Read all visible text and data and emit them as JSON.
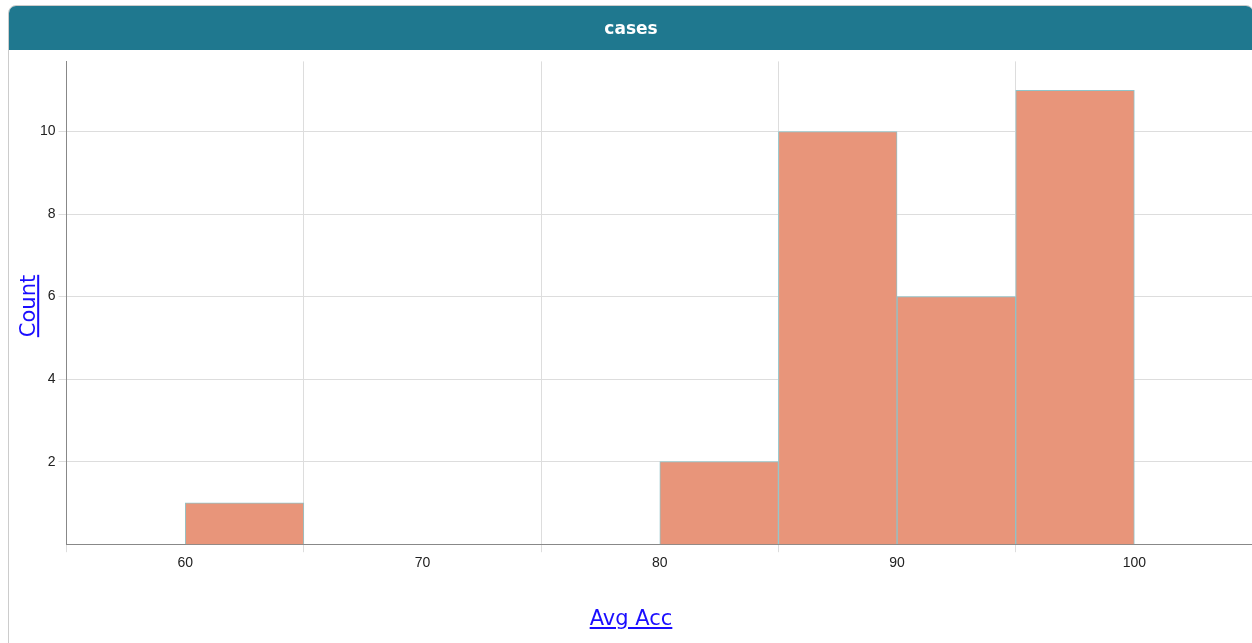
{
  "chart_data": {
    "type": "histogram",
    "title": "cases",
    "xlabel": "Avg Acc",
    "ylabel": "Count",
    "bins": [
      60,
      65,
      70,
      75,
      80,
      85,
      90,
      95,
      100
    ],
    "values": [
      1,
      0,
      0,
      0,
      2,
      10,
      6,
      11
    ],
    "color": "#e8957a",
    "xlim": [
      55,
      105
    ],
    "xticks": [
      60,
      70,
      80,
      90,
      100
    ],
    "ylim": [
      0,
      11.7
    ],
    "yticks": [
      2,
      4,
      6,
      8,
      10
    ],
    "grid": true,
    "legend": false
  }
}
